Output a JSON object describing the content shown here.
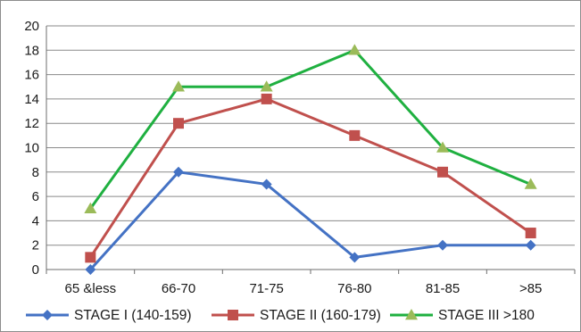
{
  "chart_data": {
    "type": "line",
    "title": "",
    "xlabel": "",
    "ylabel": "",
    "ylim": [
      0,
      20
    ],
    "yticks": [
      0,
      2,
      4,
      6,
      8,
      10,
      12,
      14,
      16,
      18,
      20
    ],
    "grid": true,
    "legend_position": "bottom",
    "categories": [
      "65 &less",
      "66-70",
      "71-75",
      "76-80",
      "81-85",
      ">85"
    ],
    "series": [
      {
        "name": "STAGE I (140-159)",
        "color": "#4472c4",
        "marker": "diamond",
        "values": [
          0,
          8,
          7,
          1,
          2,
          2
        ]
      },
      {
        "name": "STAGE II (160-179)",
        "color": "#c0504d",
        "marker": "square",
        "values": [
          1,
          12,
          14,
          11,
          8,
          3
        ]
      },
      {
        "name": "STAGE III >180",
        "color": "#9bbb59",
        "line_color": "#1fb040",
        "marker": "triangle",
        "values": [
          5,
          15,
          15,
          18,
          10,
          7
        ]
      }
    ]
  }
}
